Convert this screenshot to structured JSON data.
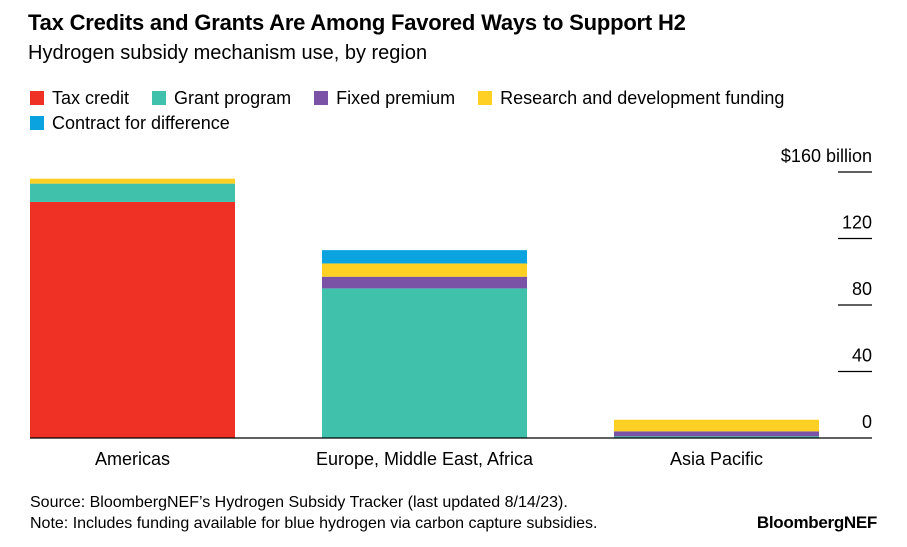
{
  "title": "Tax Credits and Grants Are Among Favored Ways to Support H2",
  "subtitle": "Hydrogen subsidy mechanism use, by region",
  "source": "Source: BloombergNEF’s Hydrogen Subsidy Tracker (last updated 8/14/23).",
  "note": "Note: Includes funding available for blue hydrogen via carbon capture subsidies.",
  "brand": "BloombergNEF",
  "chart_data": {
    "type": "bar",
    "stacked": true,
    "categories": [
      "Americas",
      "Europe, Middle East, Africa",
      "Asia Pacific"
    ],
    "ylabel": "",
    "y_unit_label": "$160 billion",
    "ylim": [
      0,
      160
    ],
    "yticks": [
      "0",
      "40",
      "80",
      "120",
      "$160 billion"
    ],
    "yaxis_position": "right",
    "legend_position": "top-left",
    "series": [
      {
        "name": "Tax credit",
        "color": "#ee3124",
        "values": [
          142,
          0,
          0
        ]
      },
      {
        "name": "Grant program",
        "color": "#40c1ac",
        "values": [
          11,
          90,
          1
        ]
      },
      {
        "name": "Fixed premium",
        "color": "#7a52a6",
        "values": [
          0,
          7,
          3
        ]
      },
      {
        "name": "Research and development funding",
        "color": "#fdd023",
        "values": [
          3,
          8,
          7
        ]
      },
      {
        "name": "Contract for difference",
        "color": "#0aa3df",
        "values": [
          0,
          8,
          0
        ]
      }
    ]
  }
}
